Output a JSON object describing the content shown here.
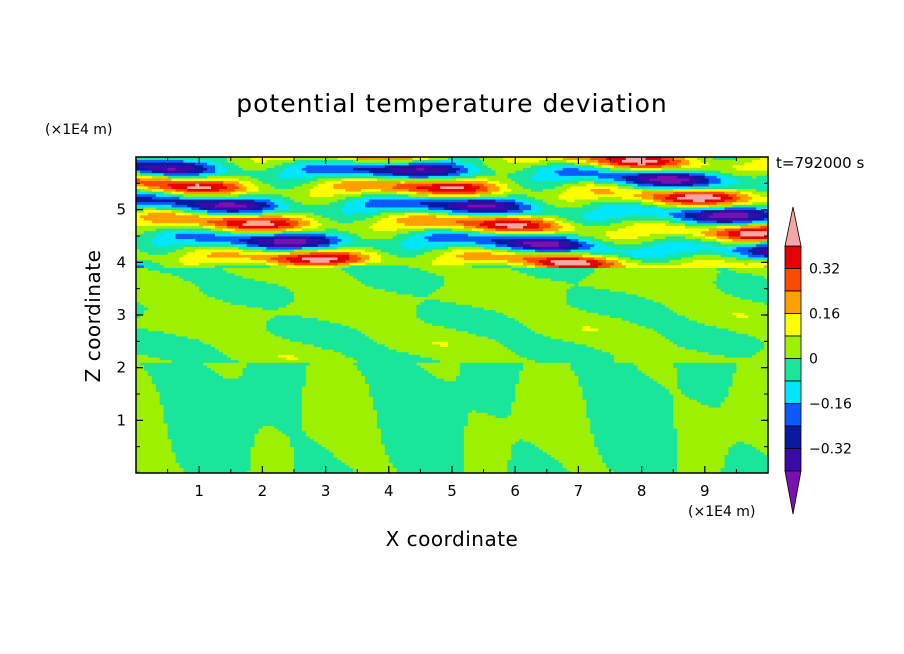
{
  "chart_data": {
    "type": "heatmap",
    "title": "potential temperature deviation",
    "xlabel": "X coordinate",
    "ylabel": "Z coordinate",
    "x_unit": "(×1E4 m)",
    "y_unit": "(×1E4 m)",
    "time_label": "t=792000 s",
    "xlim": [
      0,
      10
    ],
    "ylim": [
      0,
      6
    ],
    "x_ticks": [
      "1",
      "2",
      "3",
      "4",
      "5",
      "6",
      "7",
      "8",
      "9"
    ],
    "y_ticks": [
      "1",
      "2",
      "3",
      "4",
      "5"
    ],
    "colorbar": {
      "levels": [
        -0.4,
        -0.32,
        -0.24,
        -0.16,
        -0.08,
        0,
        0.08,
        0.16,
        0.24,
        0.32,
        0.4
      ],
      "tick_labels": [
        "0.32",
        "0.16",
        "0",
        "−0.16",
        "−0.32"
      ],
      "colors_low_to_high": [
        "#7b0fb0",
        "#3a0aa8",
        "#0a1aa0",
        "#0a5cff",
        "#00e6ff",
        "#19e69b",
        "#9cf000",
        "#ffff00",
        "#ffa000",
        "#ff4a00",
        "#e60000",
        "#f5a6a6"
      ],
      "extend": "both"
    },
    "bands": [
      {
        "z": [
          0.0,
          2.1
        ],
        "description": "weak deviations between -0.08 and 0.08"
      },
      {
        "z": [
          2.1,
          3.9
        ],
        "description": "weak deviations between -0.08 and 0.08"
      },
      {
        "z": [
          3.9,
          5.9
        ],
        "description": "strong horizontal layers from -0.4 to 0.4"
      }
    ]
  }
}
